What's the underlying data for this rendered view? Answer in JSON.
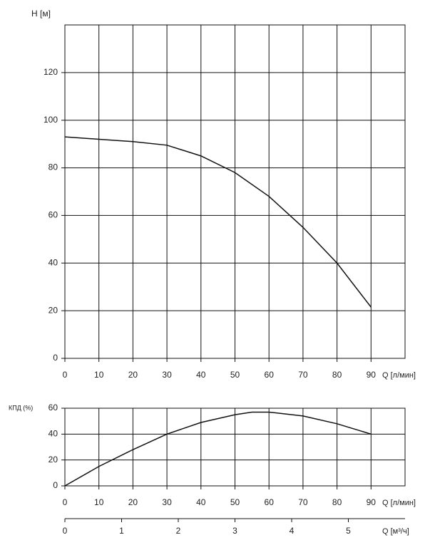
{
  "chart_data": [
    {
      "type": "line",
      "ylabel": "H [м]",
      "xlabel": "Q [л/мин]",
      "x": [
        0,
        10,
        20,
        30,
        40,
        50,
        60,
        70,
        80,
        90
      ],
      "series": [
        {
          "name": "H",
          "color": "#111111",
          "values": [
            93,
            92,
            91,
            89.5,
            85,
            78,
            68,
            55,
            40,
            21.5
          ]
        }
      ],
      "xlim": [
        0,
        100
      ],
      "xticks": [
        0,
        10,
        20,
        30,
        40,
        50,
        60,
        70,
        80,
        90
      ],
      "ylim": [
        0,
        140
      ],
      "yticks": [
        0,
        20,
        40,
        60,
        80,
        100,
        120
      ],
      "grid": true
    },
    {
      "type": "line",
      "ylabel": "КПД (%)",
      "xlabel": "Q [л/мин]",
      "x": [
        0,
        10,
        20,
        30,
        40,
        50,
        55,
        60,
        70,
        80,
        90
      ],
      "series": [
        {
          "name": "КПД",
          "color": "#111111",
          "values": [
            0,
            15,
            28,
            40,
            49,
            55,
            57,
            57,
            54,
            48,
            40
          ]
        }
      ],
      "xlim": [
        0,
        100
      ],
      "xticks": [
        0,
        10,
        20,
        30,
        40,
        50,
        60,
        70,
        80,
        90
      ],
      "ylim": [
        0,
        60
      ],
      "yticks": [
        0,
        20,
        40,
        60
      ],
      "grid": true,
      "x2label": "Q [м³/ч]",
      "x2lim": [
        0,
        6
      ],
      "x2ticks": [
        0,
        1,
        2,
        3,
        4,
        5
      ]
    }
  ]
}
